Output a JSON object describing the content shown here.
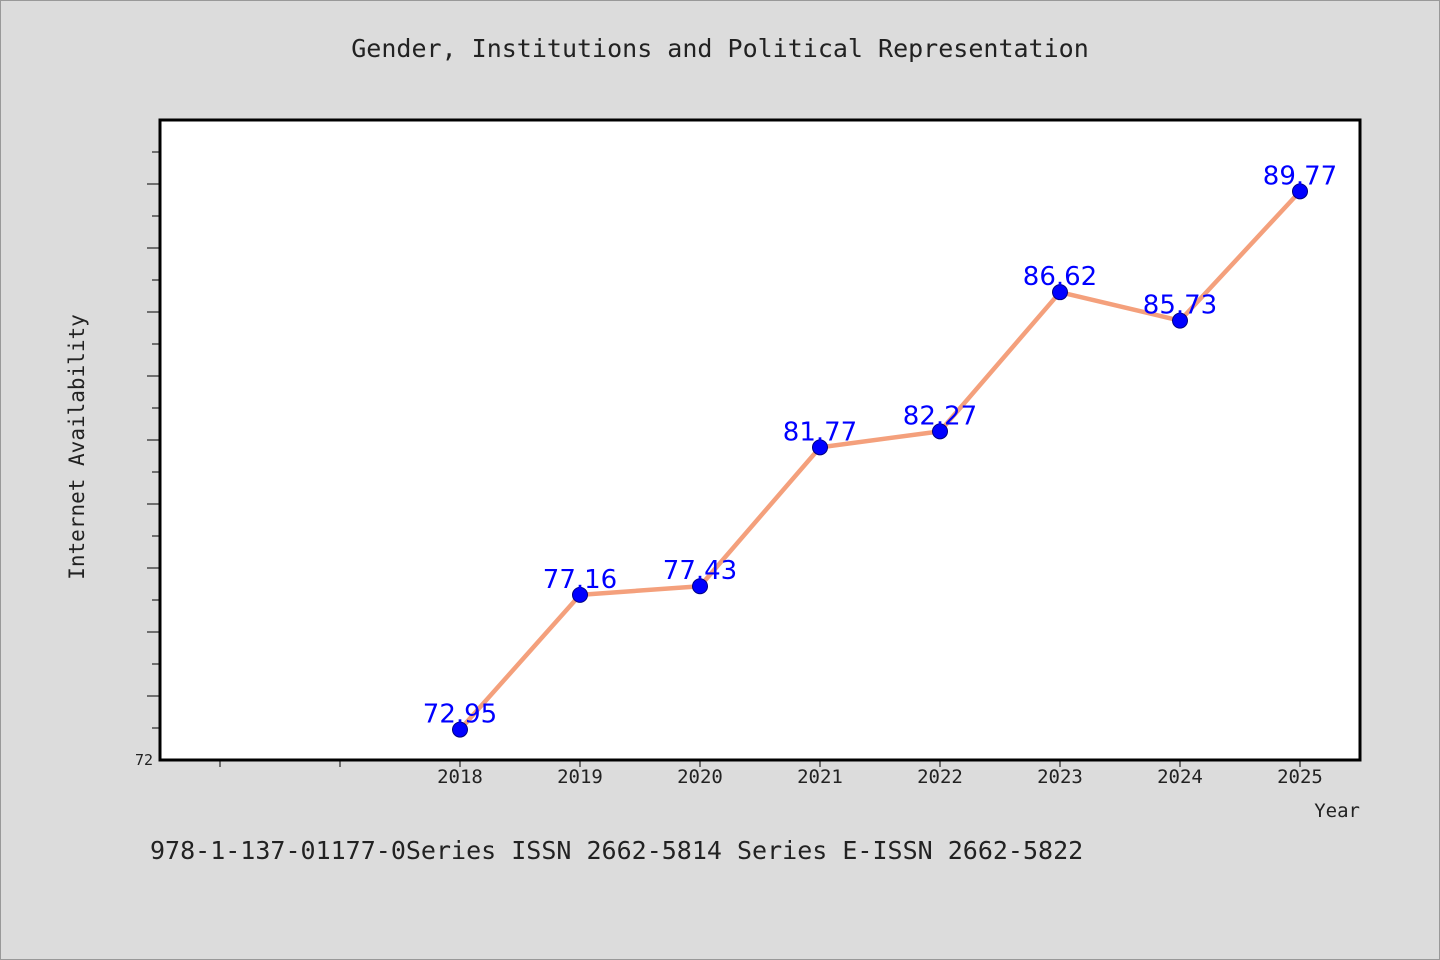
{
  "chart_data": {
    "type": "line",
    "title": "Gender, Institutions and Political Representation",
    "xlabel": "Year",
    "ylabel": "Internet Availability",
    "categories": [
      "2018",
      "2019",
      "2020",
      "2021",
      "2022",
      "2023",
      "2024",
      "2025"
    ],
    "series": [
      {
        "values": [
          72.95,
          77.16,
          77.43,
          81.77,
          82.27,
          86.62,
          85.73,
          89.77
        ],
        "labels": [
          "72.95",
          "77.16",
          "77.43",
          "81.77",
          "82.27",
          "86.62",
          "85.73",
          "89.77"
        ]
      }
    ],
    "y_tick_labels": [
      "72"
    ],
    "ylim": [
      72,
      92
    ],
    "grid": false,
    "legend": "none",
    "colors": {
      "line": "#f4a07c",
      "marker": "#0000ff",
      "label": "#0000ff",
      "plot_background": "#ffffff",
      "page_background": "#dcdcdc"
    }
  },
  "footer": {
    "text": "978-1-137-01177-0Series ISSN 2662-5814 Series E-ISSN 2662-5822"
  }
}
